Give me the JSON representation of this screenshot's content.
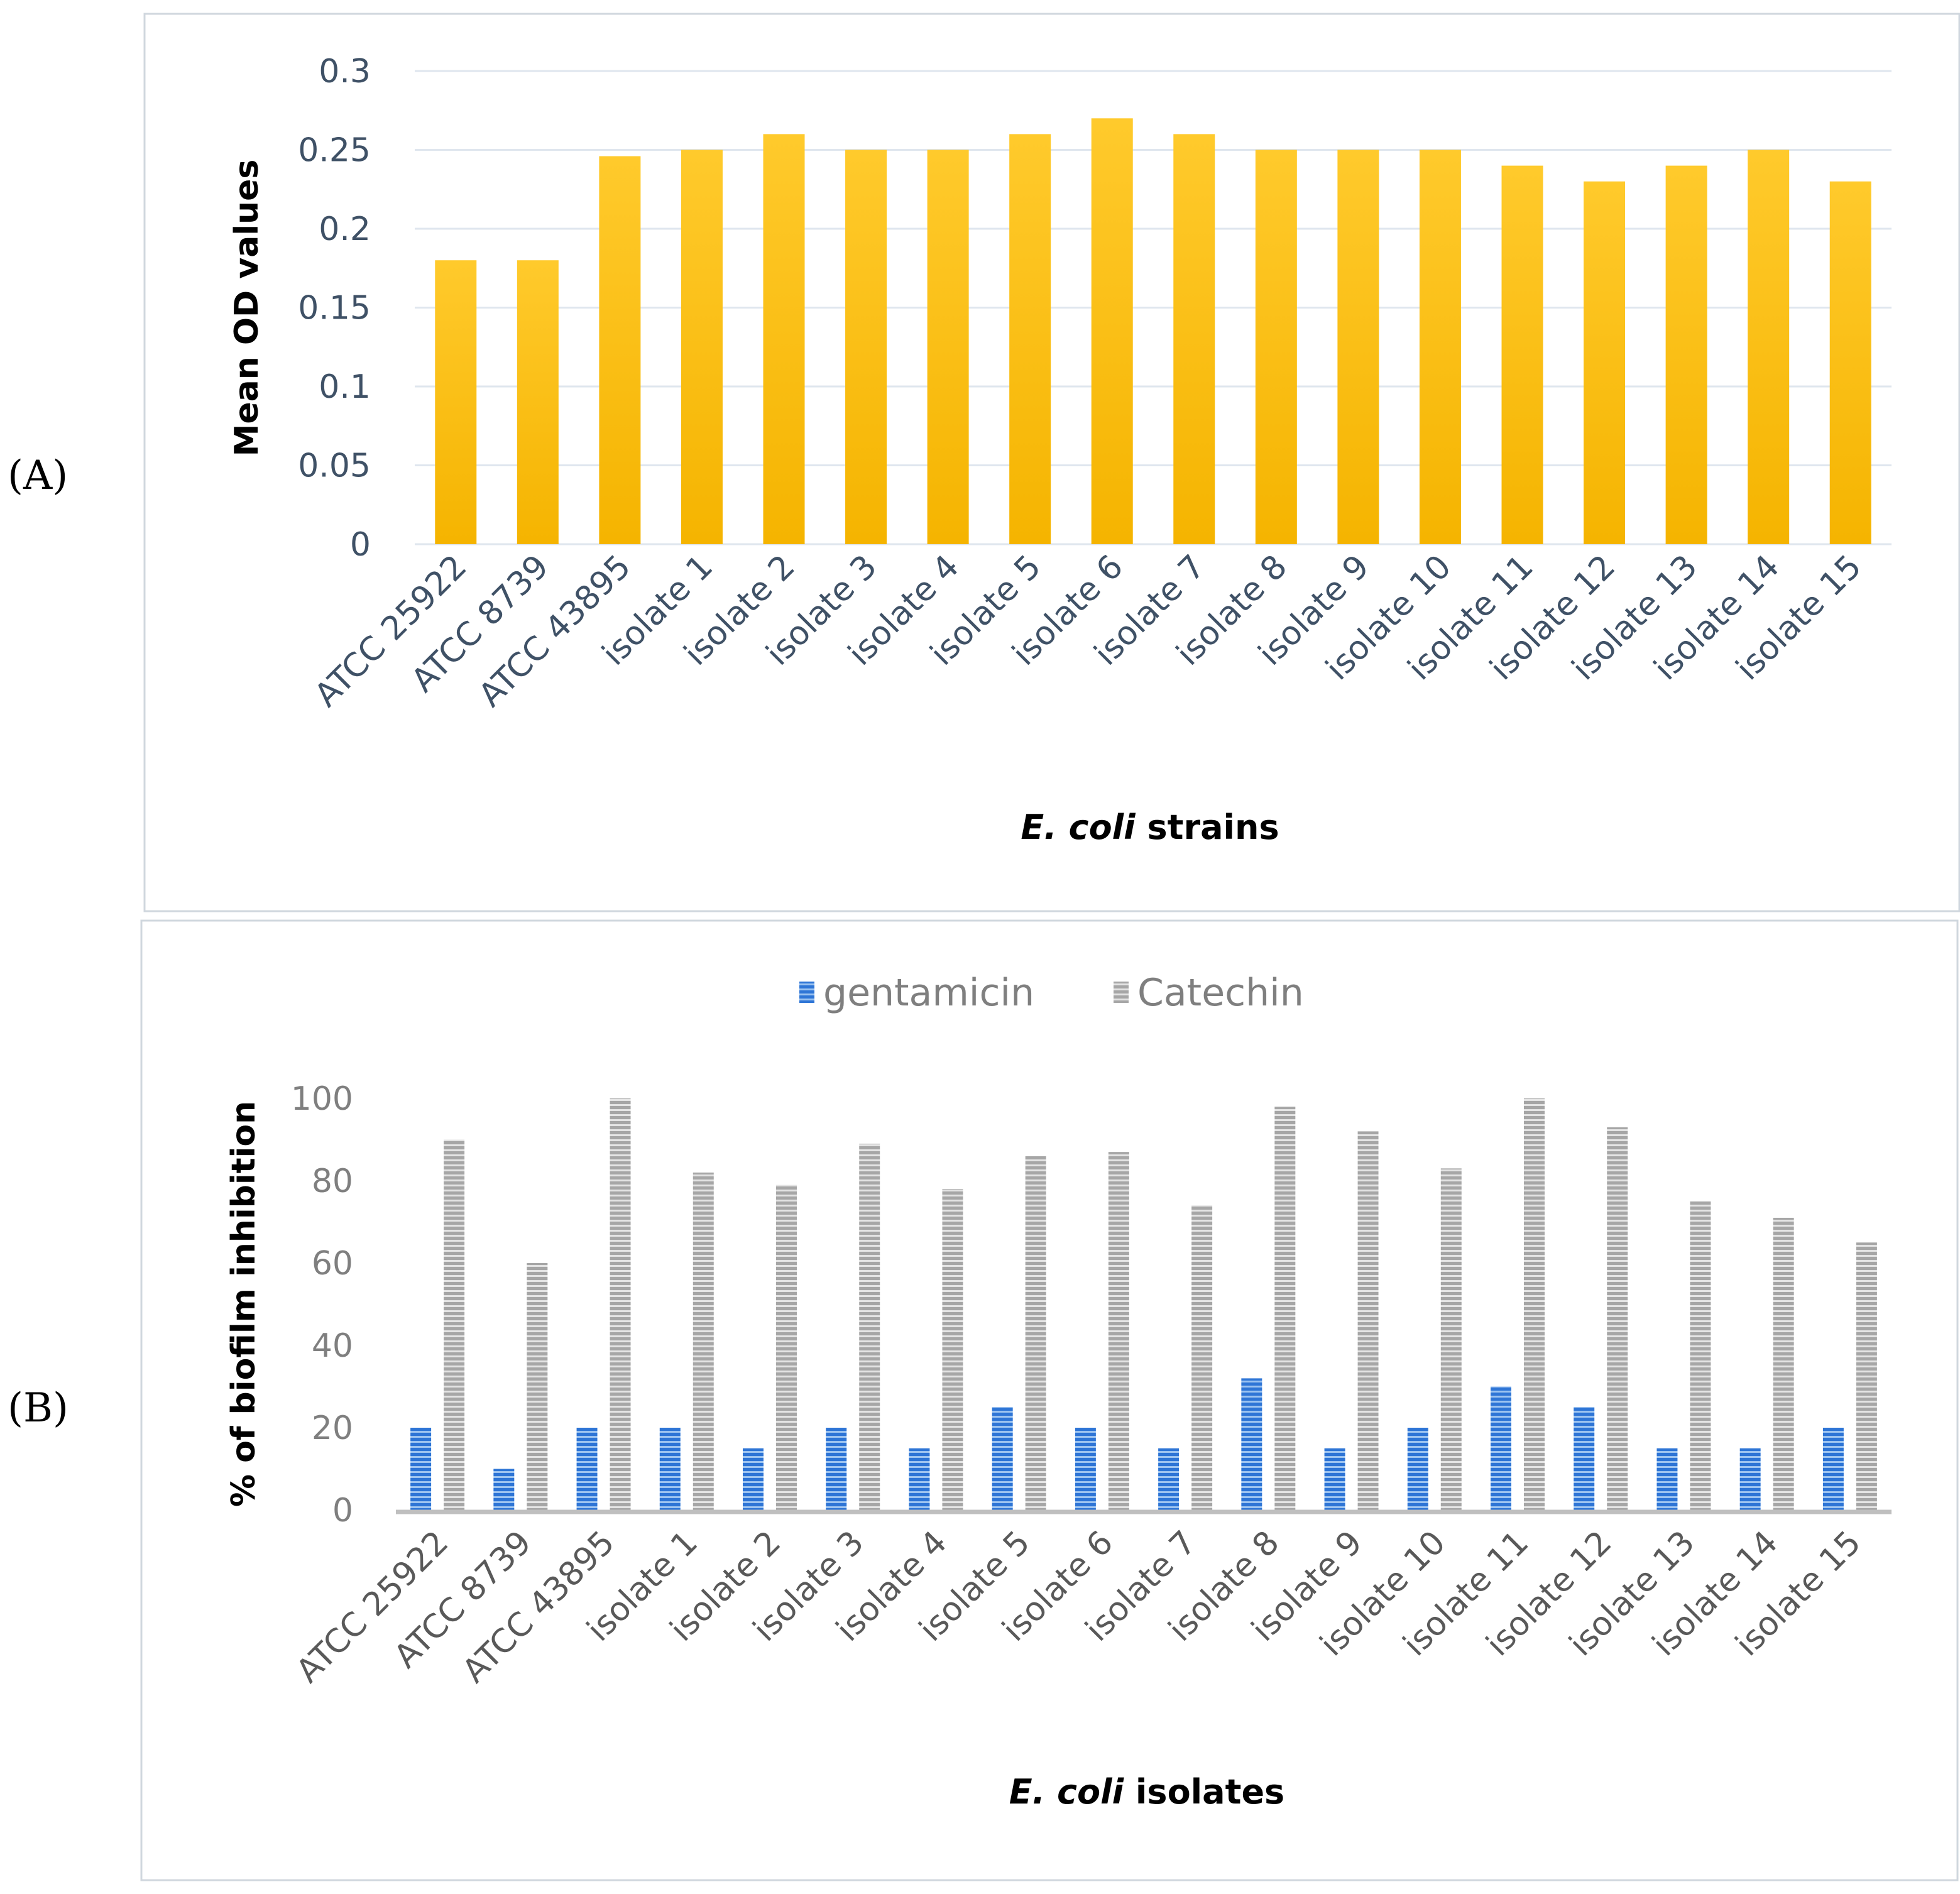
{
  "panel_labels": {
    "a": "(A)",
    "b": "(B)"
  },
  "chart_data": [
    {
      "type": "bar",
      "panel": "A",
      "title": "",
      "categories": [
        "ATCC 25922",
        "ATCC 8739",
        "ATCC 43895",
        "isolate 1",
        "isolate 2",
        "isolate 3",
        "isolate 4",
        "isolate 5",
        "isolate 6",
        "isolate 7",
        "isolate 8",
        "isolate 9",
        "isolate 10",
        "isolate 11",
        "isolate 12",
        "isolate 13",
        "isolate 14",
        "isolate 15"
      ],
      "values": [
        0.18,
        0.18,
        0.246,
        0.25,
        0.26,
        0.25,
        0.25,
        0.26,
        0.27,
        0.26,
        0.25,
        0.25,
        0.25,
        0.24,
        0.23,
        0.24,
        0.25,
        0.23
      ],
      "ylabel": "Mean OD values",
      "xlabel_italic": "E. coli",
      "xlabel_rest": " strains",
      "ylim": [
        0,
        0.3
      ],
      "yticks": [
        "0",
        "0.05",
        "0.1",
        "0.15",
        "0.2",
        "0.25",
        "0.3"
      ],
      "grid": true,
      "colors": {
        "bar_top": "#ffca2c",
        "bar_bottom": "#f5b400",
        "axis_text": "#3f5166"
      }
    },
    {
      "type": "bar",
      "panel": "B",
      "title": "",
      "categories": [
        "ATCC 25922",
        "ATCC 8739",
        "ATCC 43895",
        "isolate 1",
        "isolate 2",
        "isolate 3",
        "isolate 4",
        "isolate 5",
        "isolate 6",
        "isolate 7",
        "isolate 8",
        "isolate 9",
        "isolate 10",
        "isolate 11",
        "isolate 12",
        "isolate 13",
        "isolate 14",
        "isolate 15"
      ],
      "series": [
        {
          "name": "gentamicin",
          "color": "#2e75d6",
          "values": [
            20,
            10,
            20,
            20,
            15,
            20,
            15,
            25,
            20,
            15,
            32,
            15,
            20,
            30,
            25,
            15,
            15,
            20
          ]
        },
        {
          "name": "Catechin",
          "color": "#a6a6a6",
          "values": [
            90,
            60,
            100,
            82,
            79,
            89,
            78,
            86,
            87,
            74,
            98,
            92,
            83,
            100,
            93,
            75,
            71,
            65
          ]
        }
      ],
      "ylabel": "% of biofilm inhibition",
      "xlabel_italic": "E. coli",
      "xlabel_rest": " isolates",
      "ylim": [
        0,
        100
      ],
      "yticks": [
        "0",
        "20",
        "40",
        "60",
        "80",
        "100"
      ],
      "legend_position": "top-center",
      "grid": false
    }
  ]
}
